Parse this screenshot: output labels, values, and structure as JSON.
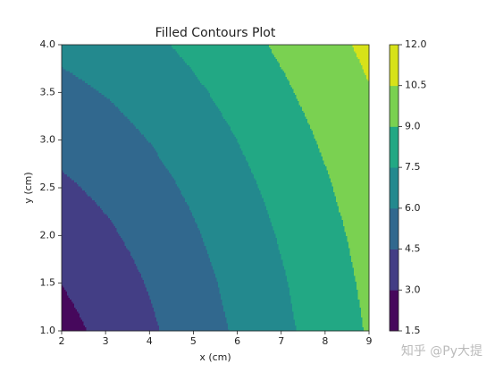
{
  "chart_data": {
    "type": "contourf",
    "title": "Filled Contours Plot",
    "xlabel": "x (cm)",
    "ylabel": "y (cm)",
    "x": [
      2,
      3,
      4,
      5,
      6,
      7,
      8,
      9
    ],
    "y": [
      1,
      1.5,
      2,
      2.5,
      3,
      3.5,
      4
    ],
    "z": [
      [
        2.5,
        3.354,
        4.272,
        5.22,
        6.185,
        7.159,
        8.139,
        9.124
      ],
      [
        3.01,
        3.75,
        4.589,
        5.483,
        6.408,
        7.353,
        8.31,
        9.277
      ],
      [
        3.606,
        4.243,
        5,
        5.831,
        6.708,
        7.616,
        8.544,
        9.487
      ],
      [
        4.25,
        4.802,
        5.483,
        6.25,
        7.075,
        7.941,
        8.835,
        9.75
      ],
      [
        4.924,
        5.408,
        6.021,
        6.727,
        7.5,
        8.322,
        9.179,
        10.062
      ],
      [
        5.618,
        6.047,
        6.6,
        7.25,
        7.973,
        8.75,
        9.569,
        10.419
      ],
      [
        6.325,
        6.708,
        7.211,
        7.81,
        8.485,
        9.22,
        10,
        10.817
      ]
    ],
    "levels": [
      1.5,
      {
        "value": 3,
        "label": "3.0"
      },
      4.5,
      {
        "value": 6,
        "label": "6.0"
      },
      7.5,
      {
        "value": 9,
        "label": "9.0"
      },
      10.5,
      {
        "value": 12,
        "label": "12.0"
      }
    ],
    "colors": [
      "#46085c",
      "#433e85",
      "#31688e",
      "#23898e",
      "#22a884",
      "#7ad151",
      "#d7e219"
    ],
    "xlim": [
      2,
      9
    ],
    "ylim": [
      1,
      4
    ],
    "xticks": [
      2,
      3,
      4,
      5,
      6,
      7,
      8,
      9
    ],
    "yticks": [
      {
        "value": 1,
        "label": "1.0"
      },
      1.5,
      {
        "value": 2,
        "label": "2.0"
      },
      2.5,
      {
        "value": 3,
        "label": "3.0"
      },
      3.5,
      {
        "value": 4,
        "label": "4.0"
      }
    ],
    "watermark": "知乎 @Py大提"
  }
}
